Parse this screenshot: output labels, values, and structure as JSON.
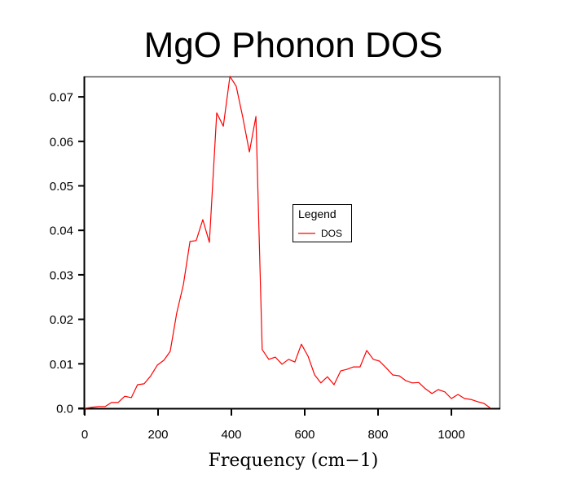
{
  "chart_data": {
    "type": "line",
    "title": "MgO Phonon DOS",
    "xlabel": "Frequency (cm−1)",
    "ylabel": "",
    "xlim": [
      0,
      1135
    ],
    "ylim": [
      0,
      0.0746
    ],
    "xticks": [
      0,
      200,
      400,
      600,
      800,
      1000
    ],
    "xtick_labels": [
      "0",
      "200",
      "400",
      "600",
      "800",
      "1000"
    ],
    "yticks": [
      0,
      0.01,
      0.02,
      0.03,
      0.04,
      0.05,
      0.06,
      0.07
    ],
    "ytick_labels": [
      "0.0",
      "0.01",
      "0.02",
      "0.03",
      "0.04",
      "0.05",
      "0.06",
      "0.07"
    ],
    "grid": false,
    "legend": {
      "title": "Legend",
      "position": "center-right"
    },
    "series": [
      {
        "name": "DOS",
        "color": "#ff0000",
        "x": [
          0,
          18,
          38,
          56,
          73,
          91,
          109,
          127,
          144,
          162,
          180,
          198,
          216,
          233,
          251,
          269,
          287,
          304,
          322,
          340,
          360,
          378,
          396,
          413,
          431,
          449,
          467,
          484,
          502,
          520,
          538,
          556,
          573,
          591,
          609,
          627,
          644,
          662,
          680,
          698,
          716,
          733,
          751,
          769,
          787,
          804,
          822,
          840,
          858,
          876,
          893,
          911,
          929,
          947,
          964,
          982,
          1000,
          1018,
          1036,
          1053,
          1071,
          1089,
          1107
        ],
        "y": [
          0.0,
          0.0002,
          0.0004,
          0.0004,
          0.0013,
          0.0013,
          0.0027,
          0.0024,
          0.0053,
          0.0055,
          0.0073,
          0.0097,
          0.0108,
          0.0128,
          0.0214,
          0.0278,
          0.0375,
          0.0377,
          0.0424,
          0.0373,
          0.0664,
          0.0634,
          0.0746,
          0.0724,
          0.0654,
          0.0576,
          0.0656,
          0.0132,
          0.011,
          0.0115,
          0.0099,
          0.011,
          0.0104,
          0.0144,
          0.0117,
          0.0075,
          0.0057,
          0.0071,
          0.0053,
          0.0084,
          0.0088,
          0.0093,
          0.0093,
          0.013,
          0.011,
          0.0106,
          0.0091,
          0.0075,
          0.0073,
          0.0062,
          0.0057,
          0.0058,
          0.0044,
          0.0033,
          0.0042,
          0.0037,
          0.0022,
          0.0031,
          0.0022,
          0.002,
          0.0015,
          0.0011,
          0.0
        ]
      }
    ]
  }
}
